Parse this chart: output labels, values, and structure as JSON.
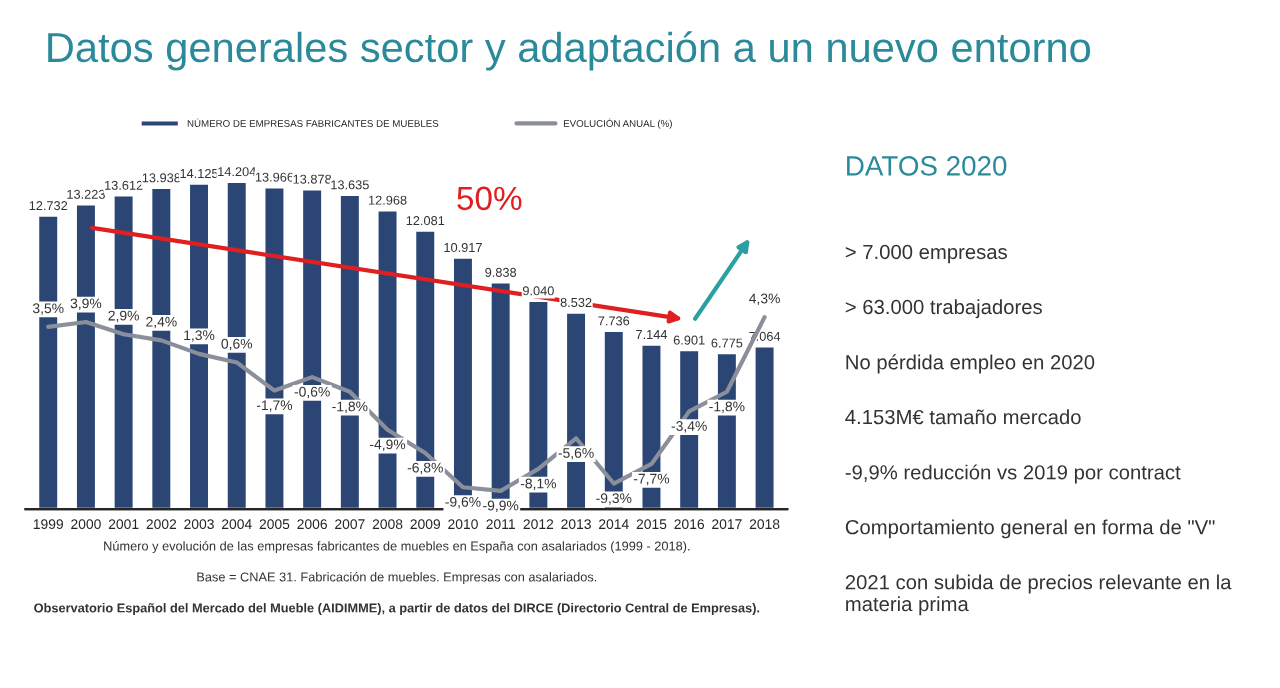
{
  "chart_data": [
    {
      "type": "bar",
      "title": "Datos generales sector y adaptación a un nuevo entorno",
      "categories": [
        "1999",
        "2000",
        "2001",
        "2002",
        "2003",
        "2004",
        "2005",
        "2006",
        "2007",
        "2008",
        "2009",
        "2010",
        "2011",
        "2012",
        "2013",
        "2014",
        "2015",
        "2016",
        "2017",
        "2018"
      ],
      "series": [
        {
          "name": "NÚMERO DE EMPRESAS FABRICANTES DE MUEBLES",
          "type": "bar",
          "color": "#2b4675",
          "values": [
            12732,
            13223,
            13612,
            13938,
            14125,
            14204,
            13966,
            13878,
            13635,
            12968,
            12081,
            10917,
            9838,
            9040,
            8532,
            7736,
            7144,
            6901,
            6775,
            7064
          ],
          "value_labels": [
            "12.732",
            "13.223",
            "13.612",
            "13.938",
            "14.125",
            "14.204",
            "13.966",
            "13.878",
            "13.635",
            "12.968",
            "12.081",
            "10.917",
            "9.838",
            "9.040",
            "8.532",
            "7.736",
            "7.144",
            "6.901",
            "6.775",
            "7.064"
          ]
        },
        {
          "name": "EVOLUCIÓN ANUAL (%)",
          "type": "line",
          "axis": "y2",
          "color": "#8a8f99",
          "values": [
            3.5,
            3.9,
            2.9,
            2.4,
            1.3,
            0.6,
            -1.7,
            -0.6,
            -1.8,
            -4.9,
            -6.8,
            -9.6,
            -9.9,
            -8.1,
            -5.6,
            -9.3,
            -7.7,
            -3.4,
            -1.8,
            4.3
          ],
          "value_labels": [
            "3,5%",
            "3,9%",
            "2,9%",
            "2,4%",
            "1,3%",
            "0,6%",
            "-1,7%",
            "-0,6%",
            "-1,8%",
            "-4,9%",
            "-6,8%",
            "-9,6%",
            "-9,9%",
            "-8,1%",
            "-5,6%",
            "-9,3%",
            "-7,7%",
            "-3,4%",
            "-1,8%",
            "4,3%"
          ]
        }
      ],
      "legend": "top",
      "tick_labels": "x",
      "grid": false,
      "annotations": [
        "50%",
        "Número y evolución de las empresas fabricantes de muebles en España con asalariados (1999 - 2018).",
        "Base = CNAE 31. Fabricación de muebles. Empresas con asalariados.",
        "Observatorio Español del Mercado del Mueble (AIDIMME), a partir de datos del DIRCE (Directorio Central de Empresas)."
      ]
    },
    {
      "type": "other",
      "title": "DATOS 2020",
      "annotations": [
        "> 7.000 empresas",
        "> 63.000 trabajadores",
        "No pérdida empleo en 2020",
        "4.153M€ tamaño mercado",
        "-9,9% reducción vs 2019 por contract",
        "Comportamiento general en forma de \"V\"",
        "2021 con subida de precios relevante en la materia prima"
      ]
    }
  ]
}
